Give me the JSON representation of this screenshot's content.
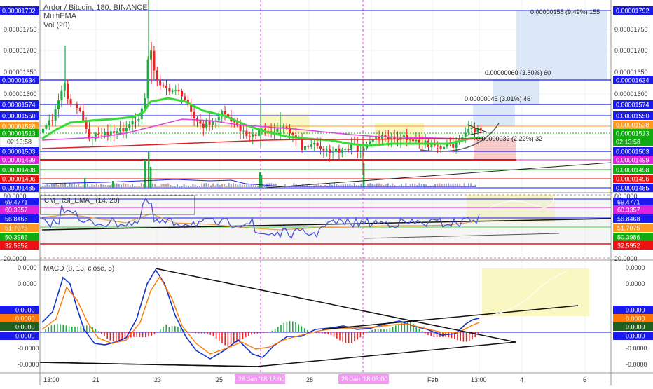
{
  "header": {
    "title": "Ardor / Bitcoin, 180, BINANCE",
    "indicator_ema": "MultiEMA",
    "indicator_vol": "Vol (20)"
  },
  "colors": {
    "up": "#22aa44",
    "down": "#ee2222",
    "ema_green": "#33dd33",
    "ema_magenta": "#e040e0",
    "ema_red": "#e02020",
    "rsi_line": "#4455dd",
    "rsi_ema": "#f0a040",
    "macd_line": "#1133cc",
    "signal_line": "#ff7700",
    "label_blue": "#1a1aee",
    "label_red": "#ee1111",
    "label_magenta": "#dd22dd",
    "label_orange": "#ff9922",
    "label_green": "#11aa11",
    "label_darkgreen": "#1f5f1f"
  },
  "main_chart": {
    "y_ticks": [
      "0.00001750",
      "0.00001700",
      "0.00001650",
      "0.00001600",
      "0.00001550",
      "0.00001500"
    ],
    "left_labels": [
      {
        "text": "0.00001792",
        "color": "#1a1aee"
      },
      {
        "text": "0.00001634",
        "color": "#1a1aee"
      },
      {
        "text": "0.00001574",
        "color": "#1a1aee"
      },
      {
        "text": "0.00001550",
        "color": "#1a1aee"
      },
      {
        "text": "0.00001528",
        "color": "#ff9922"
      },
      {
        "text": "0.00001513",
        "color": "#11aa11"
      },
      {
        "text": "0.00001503",
        "color": "#1a1aee"
      },
      {
        "text": "0.00001499",
        "color": "#dd22dd"
      },
      {
        "text": "0.00001498",
        "color": "#11aa11"
      },
      {
        "text": "0.00001496",
        "color": "#ee1111"
      },
      {
        "text": "0.00001485",
        "color": "#1a1aee"
      }
    ],
    "right_labels": [
      {
        "text": "0.00001792",
        "color": "#1a1aee"
      },
      {
        "text": "0.00001634",
        "color": "#1a1aee"
      },
      {
        "text": "0.00001574",
        "color": "#1a1aee"
      },
      {
        "text": "0.00001550",
        "color": "#1a1aee"
      },
      {
        "text": "0.00001528",
        "color": "#ff9922"
      },
      {
        "text": "0.00001513",
        "color": "#11aa11"
      },
      {
        "text": "02:13:58",
        "color": "#11aa11"
      },
      {
        "text": "0.00001503",
        "color": "#1a1aee"
      },
      {
        "text": "0.00001499",
        "color": "#dd22dd"
      },
      {
        "text": "0.00001498",
        "color": "#11aa11"
      },
      {
        "text": "0.00001496",
        "color": "#ee1111"
      },
      {
        "text": "0.00001485",
        "color": "#1a1aee"
      }
    ],
    "left_time_label": "02:13:58",
    "annotations": [
      "0.00000155 (9.49%) 155",
      "0.00000060 (3.80%) 60",
      "0.00000046 (3.01%) 46",
      "0.00000032 (2.22%) 32"
    ]
  },
  "rsi_panel": {
    "title": "CM_RSI_EMA_ (14, 20)",
    "top_tick": "80.0000",
    "bottom_tick": "20.0000",
    "labels": [
      {
        "text": "69.4771",
        "color": "#1a1aee"
      },
      {
        "text": "60.3357",
        "color": "#dd22dd"
      },
      {
        "text": "56.8468",
        "color": "#1a1aee"
      },
      {
        "text": "51.7075",
        "color": "#ff9922"
      },
      {
        "text": "50.3986",
        "color": "#11aa11"
      },
      {
        "text": "32.5952",
        "color": "#ee1111"
      }
    ]
  },
  "macd_panel": {
    "title": "MACD (8, 13, close, 5)",
    "ticks": [
      "0.0000",
      "0.0000",
      "0.0000",
      "-0.0000",
      "-0.0000"
    ],
    "labels": [
      {
        "text": "0.0000",
        "color": "#1a1aee"
      },
      {
        "text": "0.0000",
        "color": "#ff7700"
      },
      {
        "text": "0.0000",
        "color": "#1f5f1f"
      },
      {
        "text": "0.0000",
        "color": "#1a1aee"
      }
    ],
    "right_labels": [
      {
        "text": "0.0000",
        "color": "#1a1aee"
      },
      {
        "text": "0.0000",
        "color": "#ff7700"
      },
      {
        "text": "0.0000",
        "color": "#1f5f1f"
      },
      {
        "text": "0.0000",
        "color": "#1a1aee"
      }
    ]
  },
  "x_axis": {
    "ticks": [
      "13:00",
      "21",
      "23",
      "25",
      "28",
      "30",
      "Feb",
      "13:00",
      "4",
      "6"
    ],
    "highlight_1": "26 Jan '18 18:00",
    "highlight_2": "29 Jan '18 03:00"
  },
  "chart_data": [
    {
      "type": "candlestick",
      "title": "Ardor / Bitcoin, 180, BINANCE",
      "indicators": [
        "MultiEMA",
        "Vol (20)"
      ],
      "y_range": [
        1.485e-05,
        1.792e-05
      ],
      "price_levels": [
        1.792e-05,
        1.634e-05,
        1.574e-05,
        1.55e-05,
        1.528e-05,
        1.513e-05,
        1.503e-05,
        1.499e-05,
        1.498e-05,
        1.496e-05,
        1.485e-05
      ],
      "x_ticks": [
        "13:00",
        "21",
        "23",
        "25",
        "28",
        "30",
        "Feb",
        "13:00",
        "4",
        "6"
      ],
      "measurements": [
        {
          "change": 1.55e-06,
          "percent": 9.49,
          "ticks": 155
        },
        {
          "change": 6e-07,
          "percent": 3.8,
          "ticks": 60
        },
        {
          "change": 4.6e-07,
          "percent": 3.01,
          "ticks": 46
        },
        {
          "change": 3.2e-07,
          "percent": 2.22,
          "ticks": 32
        }
      ]
    },
    {
      "type": "line",
      "title": "CM_RSI_EMA_ (14, 20)",
      "y_range": [
        20,
        80
      ],
      "levels": [
        69.4771,
        60.3357,
        56.8468,
        51.7075,
        50.3986,
        32.5952
      ]
    },
    {
      "type": "line",
      "title": "MACD (8, 13, close, 5)",
      "series": [
        "MACD",
        "Signal",
        "Histogram"
      ]
    }
  ]
}
